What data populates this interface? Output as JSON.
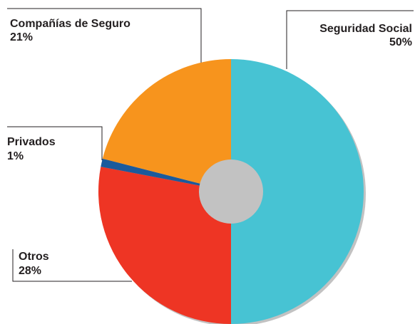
{
  "chart_data": {
    "type": "donut",
    "categories": [
      "Seguridad Social",
      "Otros",
      "Privados",
      "Compañías de Seguro"
    ],
    "values": [
      50,
      28,
      1,
      21
    ],
    "value_labels": [
      "50%",
      "28%",
      "1%",
      "21%"
    ],
    "colors": [
      "#47c3d3",
      "#ee3524",
      "#1b5a9c",
      "#f7941d"
    ]
  }
}
